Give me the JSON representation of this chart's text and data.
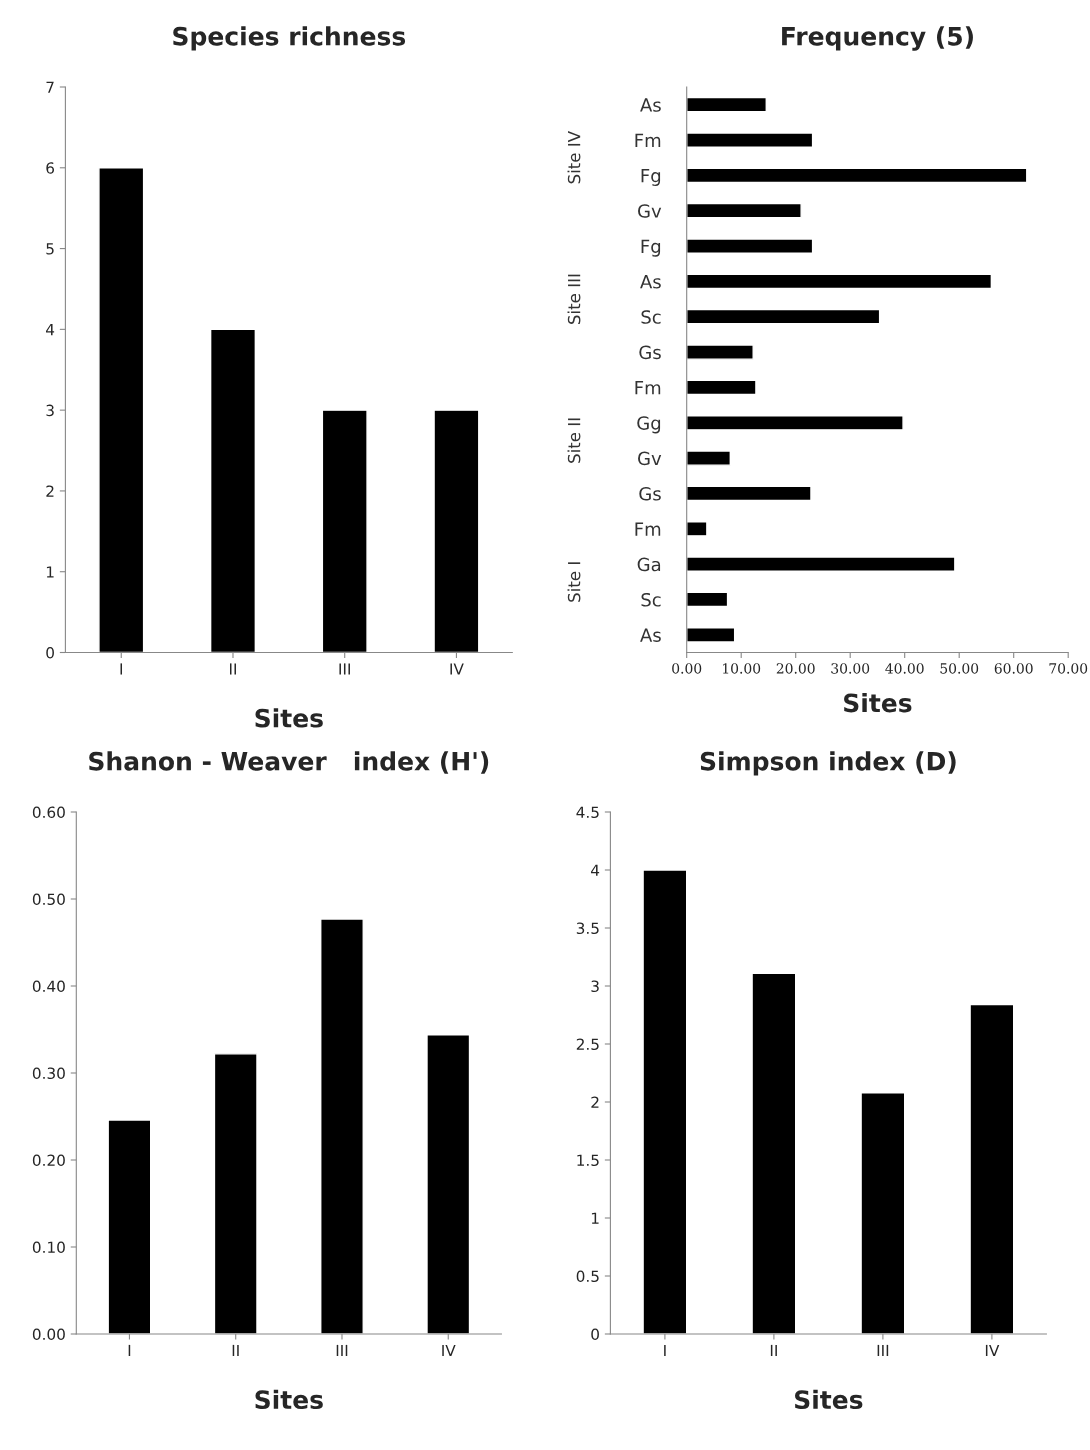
{
  "chart_data": [
    {
      "type": "bar",
      "title": "Species richness",
      "xlabel": "Sites",
      "categories": [
        "I",
        "II",
        "III",
        "IV"
      ],
      "values": [
        6,
        4,
        3,
        3
      ],
      "color": "#000000",
      "ylim": [
        0,
        7
      ],
      "yticks": [
        0,
        1,
        2,
        3,
        4,
        5,
        6,
        7
      ],
      "grid": false
    },
    {
      "type": "bar",
      "orientation": "horizontal",
      "title": "Frequency (5)",
      "xlabel": "Sites",
      "categories": [
        "As",
        "Fm",
        "Fg",
        "Gv",
        "Fg",
        "As",
        "Sc",
        "Gs",
        "Fm",
        "Gg",
        "Gv",
        "Gs",
        "Fm",
        "Ga",
        "Sc",
        "As"
      ],
      "values": [
        14.6,
        23.1,
        62.4,
        21.0,
        23.1,
        55.9,
        35.4,
        12.2,
        12.7,
        39.7,
        8.0,
        22.8,
        3.7,
        49.2,
        7.5,
        8.8
      ],
      "color": "#000000",
      "xlim": [
        0,
        70
      ],
      "xticks": [
        {
          "value": 0,
          "label": "0.00"
        },
        {
          "value": 10,
          "label": "10.00"
        },
        {
          "value": 20,
          "label": "20.00"
        },
        {
          "value": 30,
          "label": "30.00"
        },
        {
          "value": 40,
          "label": "40.00"
        },
        {
          "value": 50,
          "label": "50.00"
        },
        {
          "value": 60,
          "label": "60.00"
        },
        {
          "value": 70,
          "label": "70.00"
        }
      ],
      "grid": false,
      "annotations": [
        "Site IV",
        "Site III",
        "Site II",
        "Site I"
      ]
    },
    {
      "type": "bar",
      "title": "Shanon - Weaver   index (H')",
      "xlabel": "Sites",
      "categories": [
        "I",
        "II",
        "III",
        "IV"
      ],
      "values": [
        0.246,
        0.322,
        0.477,
        0.344
      ],
      "color": "#000000",
      "ylim": [
        0,
        0.6
      ],
      "yticks": [
        {
          "value": 0,
          "label": "0.00"
        },
        {
          "value": 0.1,
          "label": "0.10"
        },
        {
          "value": 0.2,
          "label": "0.20"
        },
        {
          "value": 0.3,
          "label": "0.30"
        },
        {
          "value": 0.4,
          "label": "0.40"
        },
        {
          "value": 0.5,
          "label": "0.50"
        },
        {
          "value": 0.6,
          "label": "0.60"
        }
      ],
      "grid": false
    },
    {
      "type": "bar",
      "title": "Simpson index (D)",
      "xlabel": "Sites",
      "categories": [
        "I",
        "II",
        "III",
        "IV"
      ],
      "values": [
        4.0,
        3.11,
        2.08,
        2.84
      ],
      "color": "#000000",
      "ylim": [
        0,
        4.5
      ],
      "yticks": [
        0,
        0.5,
        1,
        1.5,
        2,
        2.5,
        3,
        3.5,
        4,
        4.5
      ],
      "grid": false
    }
  ]
}
